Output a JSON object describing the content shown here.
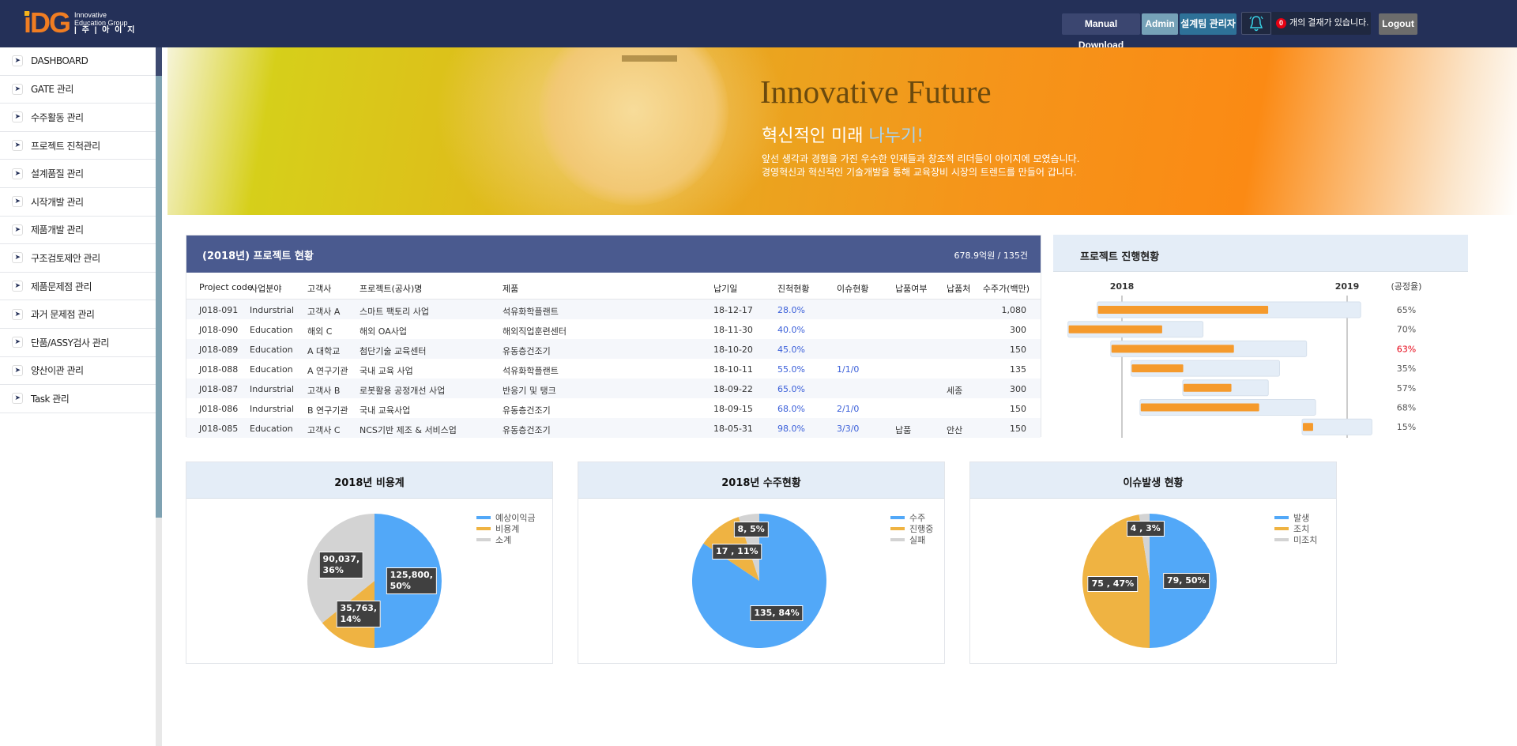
{
  "header": {
    "logo_mark": "iDG",
    "logo_line1": "Innovative",
    "logo_line2": "Education Group",
    "logo_line3": "| 주 |  아 이 지",
    "manual_download": "Manual Download",
    "admin": "Admin",
    "team_admin": "설계팀 관리자",
    "approval_count": "0",
    "approval_text": "개의 결재가 있습니다.",
    "logout": "Logout",
    "colors": {
      "bar": "#243058",
      "badge": "#e60012",
      "bell": "#38d4e8"
    }
  },
  "sidebar": {
    "items": [
      {
        "label": "DASHBOARD"
      },
      {
        "label": "GATE 관리"
      },
      {
        "label": "수주활동 관리"
      },
      {
        "label": "프로젝트 진척관리"
      },
      {
        "label": "설계품질 관리"
      },
      {
        "label": "시작개발 관리"
      },
      {
        "label": "제품개발 관리"
      },
      {
        "label": "구조검토제안 관리"
      },
      {
        "label": "제품문제점 관리"
      },
      {
        "label": "과거 문제점 관리"
      },
      {
        "label": "단품/ASSY검사 관리"
      },
      {
        "label": "양산이관 관리"
      },
      {
        "label": "Task 관리"
      }
    ]
  },
  "banner": {
    "title": "Innovative Future",
    "subtitle_a": "혁신적인 미래 ",
    "subtitle_b": "나누기!",
    "line1": "앞선 생각과 경험을 가진 우수한 인재들과 창조적 리더들이 아이지에 모였습니다.",
    "line2": "경영혁신과 혁신적인 기술개발을 통해 교육장비 시장의 트렌드를 만들어 갑니다."
  },
  "project_table": {
    "title": "(2018년) 프로젝트 현황",
    "total": "678.9억원 / 135건",
    "columns": [
      "Project code",
      "사업분야",
      "고객사",
      "프로젝트(공사)명",
      "제품",
      "납기일",
      "진척현황",
      "이슈현황",
      "납품여부",
      "납품처",
      "수주가(백만)"
    ],
    "rows": [
      [
        "J018-091",
        "Indurstrial",
        "고객사 A",
        "스마트 팩토리 사업",
        "석유화학플랜트",
        "18-12-17",
        "28.0%",
        "",
        "",
        "",
        "1,080"
      ],
      [
        "J018-090",
        "Education",
        "해외 C",
        "해외 OA사업",
        "해외직업훈련센터",
        "18-11-30",
        "40.0%",
        "",
        "",
        "",
        "300"
      ],
      [
        "J018-089",
        "Education",
        "A 대학교",
        "첨단기술 교육센터",
        "유동층건조기",
        "18-10-20",
        "45.0%",
        "",
        "",
        "",
        "150"
      ],
      [
        "J018-088",
        "Education",
        "A 연구기관",
        "국내 교육 사업",
        "석유화학플랜트",
        "18-10-11",
        "55.0%",
        "1/1/0",
        "",
        "",
        "135"
      ],
      [
        "J018-087",
        "Indurstrial",
        "고객사 B",
        "로봇활용 공정개선 사업",
        "반응기 및 탱크",
        "18-09-22",
        "65.0%",
        "",
        "",
        "세종",
        "300"
      ],
      [
        "J018-086",
        "Indurstrial",
        "B 연구기관",
        "국내 교육사업",
        "유동층건조기",
        "18-09-15",
        "68.0%",
        "2/1/0",
        "",
        "",
        "150"
      ],
      [
        "J018-085",
        "Education",
        "고객사 C",
        "NCS기반 제조 & 서비스업",
        "유동층건조기",
        "18-05-31",
        "98.0%",
        "3/3/0",
        "납품",
        "안산",
        "150"
      ]
    ]
  },
  "gantt": {
    "title": "프로젝트 진행현황",
    "year_labels": [
      "2018",
      "2019"
    ],
    "rate_header": "(공정율)",
    "colors": {
      "track": "#e4edf7",
      "fill": "#f59a2c",
      "alert": "#e60012"
    },
    "rows": [
      {
        "start": 2017.89,
        "end": 2019.06,
        "progress": 65,
        "label": "65%",
        "alert": false
      },
      {
        "start": 2017.76,
        "end": 2018.36,
        "progress": 70,
        "label": "70%",
        "alert": false
      },
      {
        "start": 2017.95,
        "end": 2018.82,
        "progress": 63,
        "label": "63%",
        "alert": true
      },
      {
        "start": 2018.04,
        "end": 2018.7,
        "progress": 35,
        "label": "35%",
        "alert": false
      },
      {
        "start": 2018.27,
        "end": 2018.65,
        "progress": 57,
        "label": "57%",
        "alert": false
      },
      {
        "start": 2018.08,
        "end": 2018.86,
        "progress": 68,
        "label": "68%",
        "alert": false
      },
      {
        "start": 2018.8,
        "end": 2019.11,
        "progress": 15,
        "label": "15%",
        "alert": false
      }
    ]
  },
  "chart_data": [
    {
      "type": "pie",
      "title": "2018년 비용계",
      "legend": "top-right",
      "slices": [
        {
          "name": "예상이익금",
          "value": 125800,
          "label": "125,800,\n50%",
          "color": "#52a8f8"
        },
        {
          "name": "비용계",
          "value": 35763,
          "label": "35,763,\n14%",
          "color": "#efb342"
        },
        {
          "name": "소계",
          "value": 90037,
          "label": "90,037,\n36%",
          "color": "#d3d3d3"
        }
      ]
    },
    {
      "type": "pie",
      "title": "2018년 수주현황",
      "legend": "top-right",
      "slices": [
        {
          "name": "수주",
          "value": 135,
          "label": "135, 84%",
          "color": "#52a8f8"
        },
        {
          "name": "진행중",
          "value": 17,
          "label": "17 , 11%",
          "color": "#efb342"
        },
        {
          "name": "실패",
          "value": 8,
          "label": "8, 5%",
          "color": "#d3d3d3"
        }
      ]
    },
    {
      "type": "pie",
      "title": "이슈발생 현황",
      "legend": "top-right",
      "slices": [
        {
          "name": "발생",
          "value": 79,
          "label": "79, 50%",
          "color": "#52a8f8"
        },
        {
          "name": "조치",
          "value": 75,
          "label": "75 , 47%",
          "color": "#efb342"
        },
        {
          "name": "미조치",
          "value": 4,
          "label": "4 , 3%",
          "color": "#d3d3d3"
        }
      ]
    }
  ]
}
